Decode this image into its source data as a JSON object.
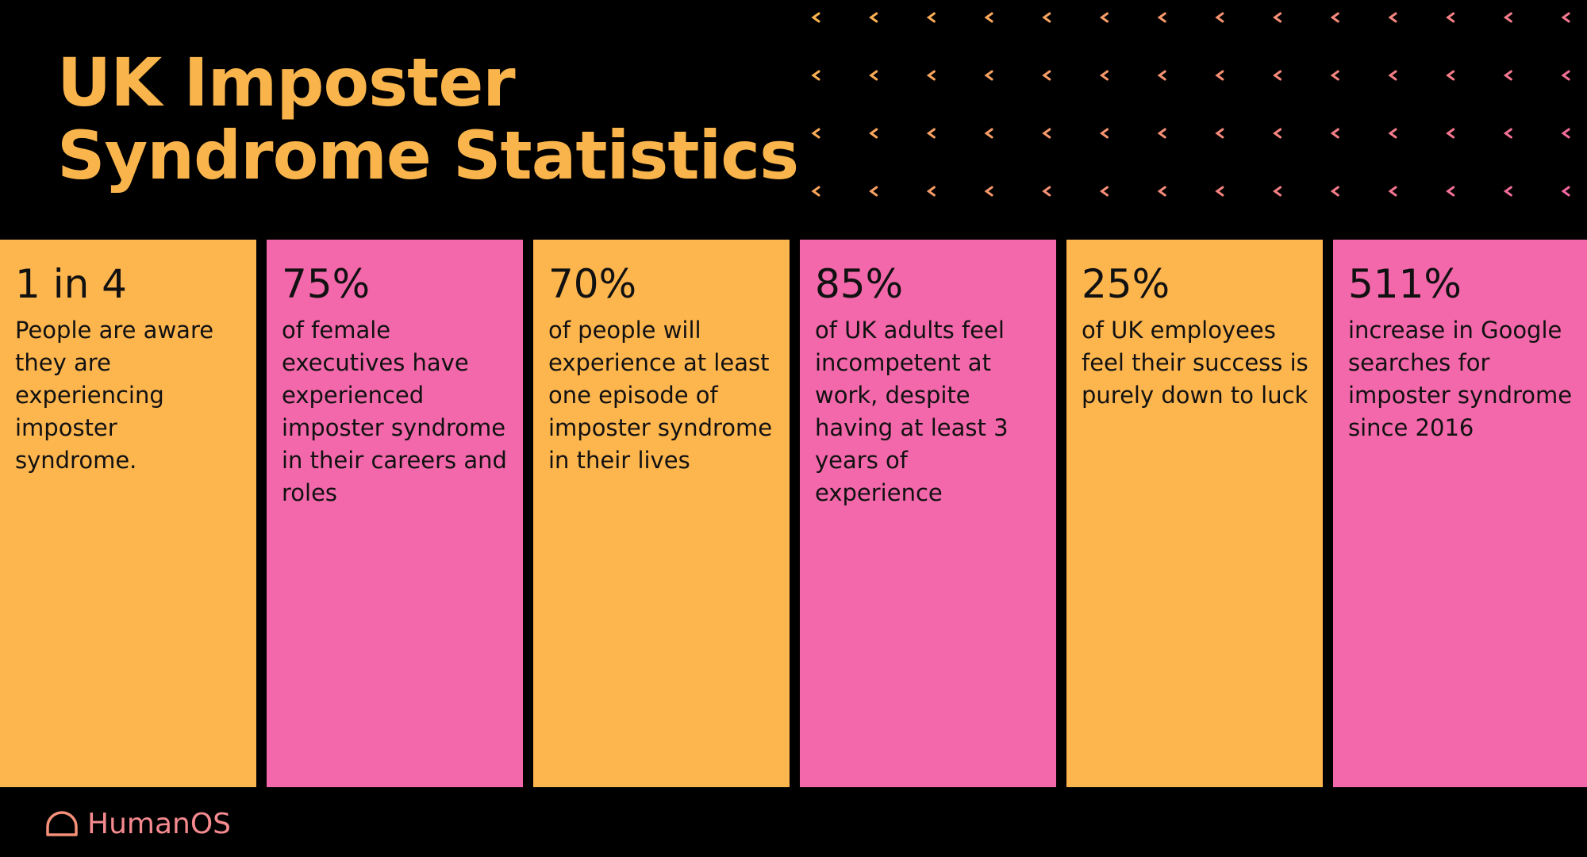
{
  "header": {
    "title": "UK Imposter Syndrome Statistics"
  },
  "cards": [
    {
      "stat": "1 in 4",
      "text": "People are aware they are experiencing imposter syndrome."
    },
    {
      "stat": "75%",
      "text": "of female executives have experienced imposter syndrome in their careers and roles"
    },
    {
      "stat": "70%",
      "text": "of people will experience at least one episode of imposter syndrome in their lives"
    },
    {
      "stat": "85%",
      "text": "of UK adults feel incompetent at work, despite having at least 3 years of experience"
    },
    {
      "stat": "25%",
      "text": "of UK employees feel their success is purely down to luck"
    },
    {
      "stat": "511%",
      "text": "increase in Google searches for imposter syndrome since 2016"
    }
  ],
  "footer": {
    "brand": "HumanOS"
  }
}
